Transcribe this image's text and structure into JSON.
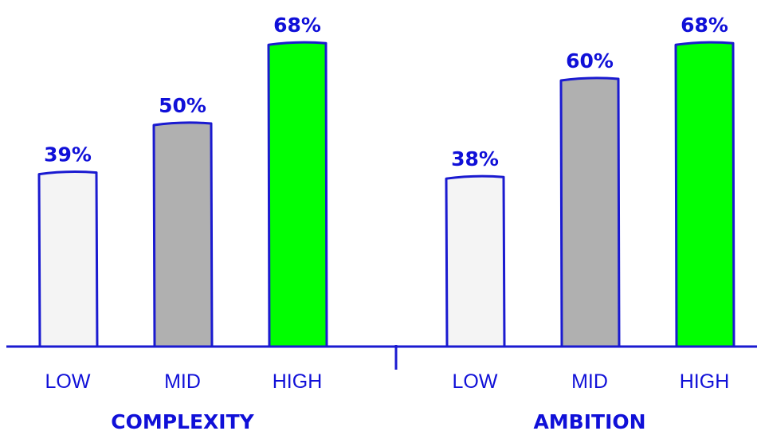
{
  "chart_data": {
    "type": "bar",
    "groups": [
      {
        "name": "COMPLEXITY",
        "categories": [
          "LOW",
          "MID",
          "HIGH"
        ],
        "values": [
          39,
          50,
          68
        ],
        "labels": [
          "39%",
          "50%",
          "68%"
        ]
      },
      {
        "name": "AMBITION",
        "categories": [
          "LOW",
          "MID",
          "HIGH"
        ],
        "values": [
          38,
          60,
          68
        ],
        "labels": [
          "38%",
          "60%",
          "68%"
        ]
      }
    ],
    "unit": "%",
    "grid": false,
    "legend": "none",
    "category_colors": [
      "#f4f4f4",
      "#b0b0b0",
      "#00ff00"
    ]
  },
  "colors": {
    "accent": "#1010d8",
    "bar_outline": "#1a1ad0",
    "axis": "#1a1ad0"
  }
}
